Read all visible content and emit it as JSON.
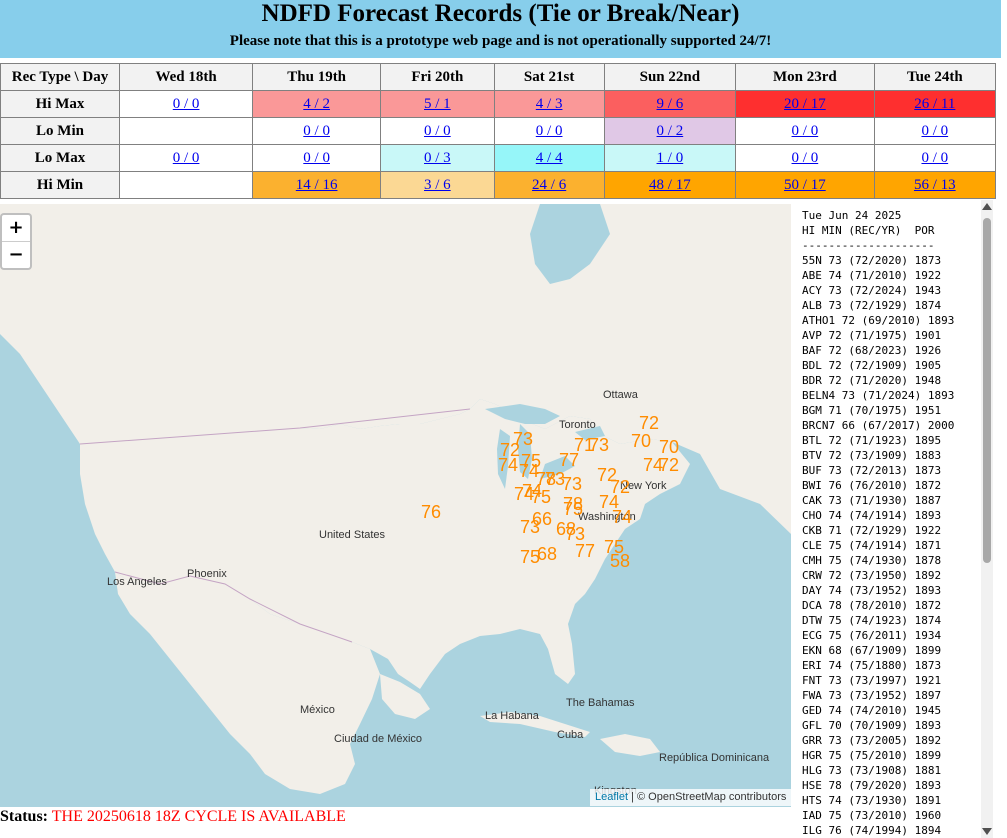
{
  "header": {
    "title": "NDFD Forecast Records (Tie or Break/Near)",
    "subtitle": "Please note that this is a prototype web page and is not operationally supported 24/7!"
  },
  "table": {
    "corner": "Rec Type \\ Day",
    "days": [
      "Wed 18th",
      "Thu 19th",
      "Fri 20th",
      "Sat 21st",
      "Sun 22nd",
      "Mon 23rd",
      "Tue 24th"
    ],
    "rows": [
      {
        "label": "Hi Max",
        "cells": [
          {
            "text": "0 / 0",
            "bg": "#ffffff"
          },
          {
            "text": "4 / 2",
            "bg": "#fa9898"
          },
          {
            "text": "5 / 1",
            "bg": "#fa9898"
          },
          {
            "text": "4 / 3",
            "bg": "#fa9898"
          },
          {
            "text": "9 / 6",
            "bg": "#fb5f5f"
          },
          {
            "text": "20 / 17",
            "bg": "#fe2f2f"
          },
          {
            "text": "26 / 11",
            "bg": "#fe2f2f"
          }
        ]
      },
      {
        "label": "Lo Min",
        "cells": [
          {
            "text": "",
            "bg": "#ffffff"
          },
          {
            "text": "0 / 0",
            "bg": "#ffffff"
          },
          {
            "text": "0 / 0",
            "bg": "#ffffff"
          },
          {
            "text": "0 / 0",
            "bg": "#ffffff"
          },
          {
            "text": "0 / 2",
            "bg": "#e0c8e6"
          },
          {
            "text": "0 / 0",
            "bg": "#ffffff"
          },
          {
            "text": "0 / 0",
            "bg": "#ffffff"
          }
        ]
      },
      {
        "label": "Lo Max",
        "cells": [
          {
            "text": "0 / 0",
            "bg": "#ffffff"
          },
          {
            "text": "0 / 0",
            "bg": "#ffffff"
          },
          {
            "text": "0 / 3",
            "bg": "#c9f8f8"
          },
          {
            "text": "4 / 4",
            "bg": "#96f6f9"
          },
          {
            "text": "1 / 0",
            "bg": "#c9f8f8"
          },
          {
            "text": "0 / 0",
            "bg": "#ffffff"
          },
          {
            "text": "0 / 0",
            "bg": "#ffffff"
          }
        ]
      },
      {
        "label": "Hi Min",
        "cells": [
          {
            "text": "",
            "bg": "#ffffff"
          },
          {
            "text": "14 / 16",
            "bg": "#fbb12f"
          },
          {
            "text": "3 / 6",
            "bg": "#fbd894"
          },
          {
            "text": "24 / 6",
            "bg": "#fbb12f"
          },
          {
            "text": "48 / 17",
            "bg": "#ffa500"
          },
          {
            "text": "50 / 17",
            "bg": "#ffa500"
          },
          {
            "text": "56 / 13",
            "bg": "#ffa500"
          }
        ]
      }
    ]
  },
  "map": {
    "zoom_in": "+",
    "zoom_out": "−",
    "attribution_leaflet": "Leaflet",
    "attribution_sep": " | © ",
    "attribution_osm": "OpenStreetMap contributors",
    "labels": [
      "Ottawa",
      "Toronto",
      "New York",
      "Washington",
      "United States",
      "Los Angeles",
      "Phoenix",
      "México",
      "Ciudad de México",
      "La Habana",
      "The Bahamas",
      "Cuba",
      "República Dominicana",
      "Kingston"
    ],
    "marker_values": [
      "72",
      "73",
      "71",
      "77",
      "73",
      "70",
      "70",
      "74",
      "72",
      "75",
      "74",
      "73",
      "73",
      "72",
      "72",
      "74",
      "72",
      "75",
      "78",
      "74",
      "74",
      "75",
      "74",
      "74",
      "73",
      "66",
      "68",
      "73",
      "77",
      "75",
      "76",
      "75",
      "68",
      "58",
      "78"
    ]
  },
  "panel": {
    "date": "Tue Jun 24 2025",
    "heading": "HI MIN (REC/YR)  POR",
    "divider": "--------------------",
    "lines": [
      "55N 73 (72/2020) 1873",
      "ABE 74 (71/2010) 1922",
      "ACY 73 (72/2024) 1943",
      "ALB 73 (72/1929) 1874",
      "ATHO1 72 (69/2010) 1893",
      "AVP 72 (71/1975) 1901",
      "BAF 72 (68/2023) 1926",
      "BDL 72 (72/1909) 1905",
      "BDR 72 (71/2020) 1948",
      "BELN4 73 (71/2024) 1893",
      "BGM 71 (70/1975) 1951",
      "BRCN7 66 (67/2017) 2000",
      "BTL 72 (71/1923) 1895",
      "BTV 72 (73/1909) 1883",
      "BUF 73 (72/2013) 1873",
      "BWI 76 (76/2010) 1872",
      "CAK 73 (71/1930) 1887",
      "CHO 74 (74/1914) 1893",
      "CKB 71 (72/1929) 1922",
      "CLE 75 (74/1914) 1871",
      "CMH 75 (74/1930) 1878",
      "CRW 72 (73/1950) 1892",
      "DAY 74 (73/1952) 1893",
      "DCA 78 (78/2010) 1872",
      "DTW 75 (74/1923) 1874",
      "ECG 75 (76/2011) 1934",
      "EKN 68 (67/1909) 1899",
      "ERI 74 (75/1880) 1873",
      "FNT 73 (73/1997) 1921",
      "FWA 73 (73/1952) 1897",
      "GED 74 (74/2010) 1945",
      "GFL 70 (70/1909) 1893",
      "GRR 73 (73/2005) 1892",
      "HGR 75 (75/2010) 1899",
      "HLG 73 (73/1908) 1881",
      "HSE 78 (79/2020) 1893",
      "HTS 74 (73/1930) 1891",
      "IAD 75 (73/2010) 1960",
      "ILG 76 (74/1994) 1894"
    ]
  },
  "status": {
    "label": "Status:",
    "text": "THE 20250618 18Z CYCLE IS AVAILABLE"
  }
}
